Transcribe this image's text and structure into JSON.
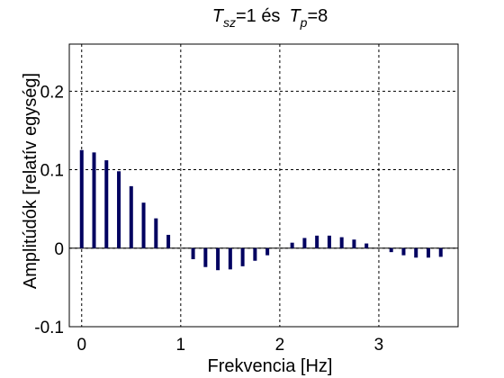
{
  "chart_data": {
    "type": "bar",
    "title_parts": {
      "t1": "T",
      "t1_sub": "sz",
      "middle": "=1 és",
      "t2": "T",
      "t2_sub": "p",
      "end": "=8"
    },
    "xlabel": "Frekvencia [Hz]",
    "ylabel": "Amplitúdók [relatív egység]",
    "xlim": [
      -0.125,
      3.8
    ],
    "ylim": [
      -0.1,
      0.26
    ],
    "xticks": [
      0,
      1,
      2,
      3
    ],
    "xtick_labels": [
      "0",
      "1",
      "2",
      "3"
    ],
    "yticks": [
      -0.1,
      0,
      0.1,
      0.2
    ],
    "ytick_labels": [
      "-0.1",
      "0",
      "0.1",
      "0.2"
    ],
    "grid": true,
    "bar_color": "#000060",
    "x": [
      0,
      0.125,
      0.25,
      0.375,
      0.5,
      0.625,
      0.75,
      0.875,
      1.0,
      1.125,
      1.25,
      1.375,
      1.5,
      1.625,
      1.75,
      1.875,
      2.0,
      2.125,
      2.25,
      2.375,
      2.5,
      2.625,
      2.75,
      2.875,
      3.0,
      3.125,
      3.25,
      3.375,
      3.5,
      3.625
    ],
    "values": [
      0.125,
      0.122,
      0.112,
      0.098,
      0.079,
      0.058,
      0.038,
      0.017,
      0,
      -0.014,
      -0.024,
      -0.028,
      -0.027,
      -0.023,
      -0.016,
      -0.009,
      0,
      0.007,
      0.013,
      0.016,
      0.016,
      0.014,
      0.011,
      0.006,
      0,
      -0.005,
      -0.009,
      -0.012,
      -0.012,
      -0.011
    ]
  }
}
